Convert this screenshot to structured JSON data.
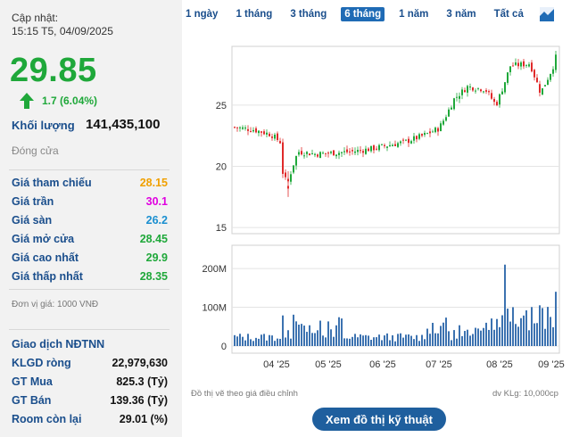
{
  "update": {
    "label": "Cập nhật:",
    "time": "15:15 T5, 04/09/2025"
  },
  "price": "29.85",
  "change": "1.7 (6.04%)",
  "volume": {
    "label": "Khối lượng",
    "value": "141,435,100"
  },
  "status": "Đóng cửa",
  "price_rows": [
    {
      "label": "Giá tham chiếu",
      "value": "28.15",
      "color": "#f0a000"
    },
    {
      "label": "Giá trần",
      "value": "30.1",
      "color": "#e000e0"
    },
    {
      "label": "Giá sàn",
      "value": "26.2",
      "color": "#1a8fd0"
    },
    {
      "label": "Giá mở cửa",
      "value": "28.45",
      "color": "#1fa83a"
    },
    {
      "label": "Giá cao nhất",
      "value": "29.9",
      "color": "#1fa83a"
    },
    {
      "label": "Giá thấp nhất",
      "value": "28.35",
      "color": "#1fa83a"
    }
  ],
  "unit_note": "Đơn vị giá: 1000 VNĐ",
  "foreign": {
    "title": "Giao dịch NĐTNN",
    "rows": [
      {
        "label": "KLGD ròng",
        "value": "22,979,630"
      },
      {
        "label": "GT Mua",
        "value": "825.3 (Tỷ)"
      },
      {
        "label": "GT Bán",
        "value": "139.36 (Tỷ)"
      },
      {
        "label": "Room còn lại",
        "value": "29.01 (%)"
      }
    ]
  },
  "tabs": [
    "1 ngày",
    "1 tháng",
    "3 tháng",
    "6 tháng",
    "1 năm",
    "3 năm",
    "Tất cả"
  ],
  "active_tab": 3,
  "chart_data": {
    "type": "candlestick",
    "price_axis": {
      "ticks": [
        "15",
        "20",
        "25"
      ],
      "range": [
        14.5,
        29.8
      ]
    },
    "volume_axis": {
      "ticks": [
        "0",
        "100M",
        "200M"
      ],
      "range": [
        0,
        260
      ]
    },
    "x_ticks": [
      "04 '25",
      "05 '25",
      "06 '25",
      "07 '25",
      "08 '25",
      "09 '25"
    ],
    "note_left": "Đồ thị vẽ theo giá điều chỉnh",
    "note_right": "dv KLg: 10,000cp"
  },
  "button": "Xem đồ thị kỹ thuật",
  "colors": {
    "up": "#1fa83a",
    "down": "#e02a2a",
    "volume": "#3c72b0",
    "accent": "#1a4e8c"
  }
}
